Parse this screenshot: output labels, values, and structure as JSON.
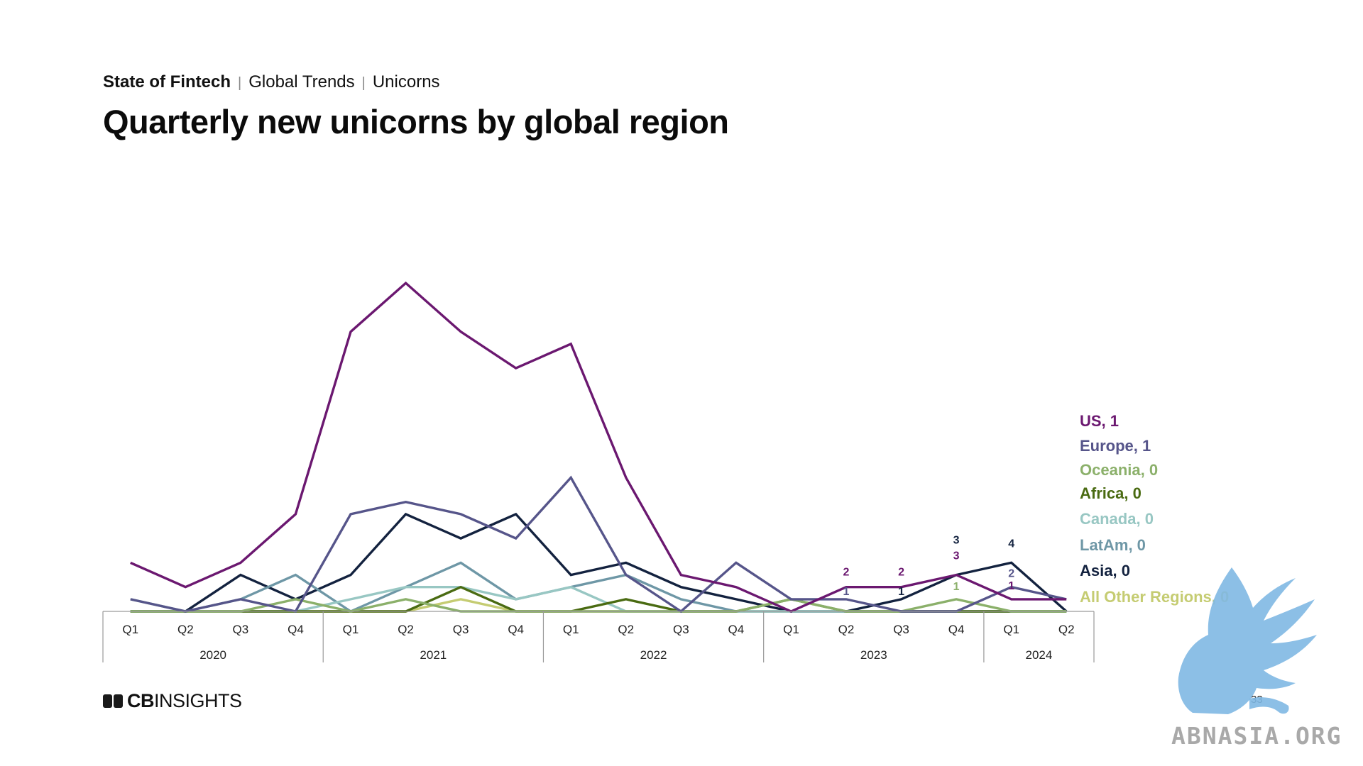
{
  "header": {
    "brand": "State of Fintech",
    "section": "Global Trends",
    "subsection": "Unicorns",
    "title": "Quarterly new unicorns by global region"
  },
  "footer": {
    "logo_text_bold": "CB",
    "logo_text": "INSIGHTS",
    "page_number": "33",
    "watermark_text": "ABNASIA.ORG"
  },
  "chart_data": {
    "type": "line",
    "x": [
      "Q1",
      "Q2",
      "Q3",
      "Q4",
      "Q1",
      "Q2",
      "Q3",
      "Q4",
      "Q1",
      "Q2",
      "Q3",
      "Q4",
      "Q1",
      "Q2",
      "Q3",
      "Q4",
      "Q1",
      "Q2"
    ],
    "year_groups": [
      {
        "label": "2020",
        "span": 4
      },
      {
        "label": "2021",
        "span": 4
      },
      {
        "label": "2022",
        "span": 4
      },
      {
        "label": "2023",
        "span": 4
      },
      {
        "label": "2024",
        "span": 2
      }
    ],
    "ylim": [
      0,
      28
    ],
    "series": [
      {
        "name": "US",
        "label": "US, 1",
        "color": "#6b1870",
        "values": [
          4,
          2,
          4,
          8,
          23,
          27,
          23,
          20,
          22,
          11,
          3,
          2,
          0,
          2,
          2,
          3,
          1,
          1
        ]
      },
      {
        "name": "Europe",
        "label": "Europe, 1",
        "color": "#56558a",
        "values": [
          1,
          0,
          1,
          0,
          8,
          9,
          8,
          6,
          11,
          3,
          0,
          4,
          1,
          1,
          0,
          0,
          2,
          1
        ]
      },
      {
        "name": "Oceania",
        "label": "Oceania, 0",
        "color": "#8bb06a",
        "values": [
          0,
          0,
          0,
          1,
          0,
          1,
          0,
          0,
          0,
          0,
          0,
          0,
          1,
          0,
          0,
          1,
          0,
          0
        ]
      },
      {
        "name": "Africa",
        "label": "Africa, 0",
        "color": "#4a6b12",
        "values": [
          0,
          0,
          0,
          0,
          0,
          0,
          2,
          0,
          0,
          1,
          0,
          0,
          1,
          0,
          0,
          0,
          0,
          0
        ]
      },
      {
        "name": "Canada",
        "label": "Canada, 0",
        "color": "#98c7c3",
        "values": [
          0,
          0,
          0,
          0,
          1,
          2,
          2,
          1,
          2,
          0,
          0,
          0,
          0,
          0,
          0,
          0,
          0,
          0
        ]
      },
      {
        "name": "LatAm",
        "label": "LatAm, 0",
        "color": "#6e97a6",
        "values": [
          1,
          0,
          1,
          3,
          0,
          2,
          4,
          1,
          2,
          3,
          1,
          0,
          0,
          0,
          0,
          0,
          0,
          0
        ]
      },
      {
        "name": "Asia",
        "label": "Asia, 0",
        "color": "#13223f",
        "values": [
          0,
          0,
          3,
          1,
          3,
          8,
          6,
          8,
          3,
          4,
          2,
          1,
          0,
          0,
          1,
          3,
          4,
          0
        ]
      },
      {
        "name": "All Other Regions",
        "label": "All Other Regions, 0",
        "color": "#c5cc72",
        "values": [
          0,
          0,
          0,
          0,
          0,
          0,
          1,
          0,
          0,
          0,
          0,
          0,
          0,
          0,
          0,
          0,
          0,
          0
        ]
      }
    ],
    "data_labels": [
      {
        "series": "US",
        "index": 13,
        "text": "2"
      },
      {
        "series": "Europe",
        "index": 13,
        "text": "1"
      },
      {
        "series": "US",
        "index": 14,
        "text": "2"
      },
      {
        "series": "Asia",
        "index": 14,
        "text": "1"
      },
      {
        "series": "Asia",
        "index": 15,
        "text": "3"
      },
      {
        "series": "US",
        "index": 15,
        "text": "3"
      },
      {
        "series": "Oceania",
        "index": 15,
        "text": "1"
      },
      {
        "series": "Asia",
        "index": 16,
        "text": "4"
      },
      {
        "series": "Europe",
        "index": 16,
        "text": "2"
      },
      {
        "series": "US",
        "index": 16,
        "text": "1"
      }
    ]
  }
}
